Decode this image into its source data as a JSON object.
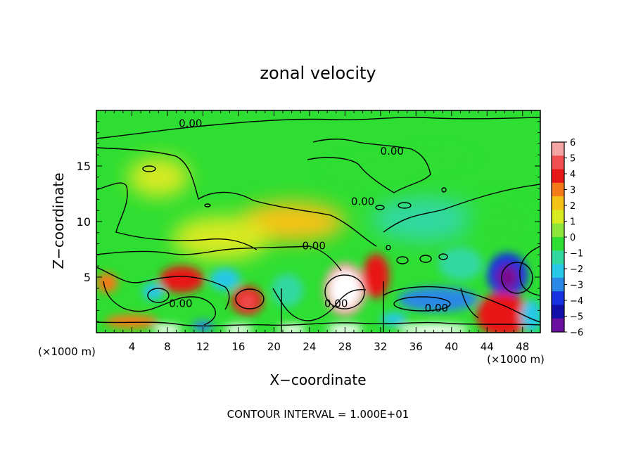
{
  "chart_data": {
    "type": "heatmap",
    "title": "zonal velocity",
    "xlabel": "X−coordinate",
    "ylabel": "Z−coordinate",
    "x_unit_left": "(×1000 m)",
    "x_unit_right": "(×1000 m)",
    "footer": "CONTOUR INTERVAL = 1.000E+01",
    "xlim": [
      0,
      50
    ],
    "ylim": [
      0,
      20
    ],
    "x_ticks": [
      4,
      8,
      12,
      16,
      20,
      24,
      28,
      32,
      36,
      40,
      44,
      48
    ],
    "y_ticks": [
      5,
      10,
      15
    ],
    "colorbar": {
      "ticks": [
        6,
        5,
        4,
        3,
        2,
        1,
        0,
        -1,
        -2,
        -3,
        -4,
        -5,
        -6
      ],
      "labels": [
        "6",
        "5",
        "4",
        "3",
        "2",
        "1",
        "0",
        "−1",
        "−2",
        "−3",
        "−4",
        "−5",
        "−6"
      ],
      "colors": [
        "#f4a3a3",
        "#f05050",
        "#e81818",
        "#f57a18",
        "#f5c218",
        "#d8ea20",
        "#8ee63a",
        "#2ede32",
        "#32d8a0",
        "#28c8e8",
        "#2a88e6",
        "#1432e0",
        "#1010a8",
        "#6a10a0"
      ]
    },
    "contour_label": "0.00",
    "contour_labels": [
      {
        "x": 10.6,
        "y": 18.5
      },
      {
        "x": 33.3,
        "y": 16.0
      },
      {
        "x": 30.0,
        "y": 11.5
      },
      {
        "x": 24.5,
        "y": 7.5
      },
      {
        "x": 9.5,
        "y": 2.3
      },
      {
        "x": 27.0,
        "y": 2.3
      },
      {
        "x": 38.3,
        "y": 1.9
      }
    ],
    "field_features": [
      {
        "x": 28.0,
        "y": 3.9,
        "r": [
          2.4,
          2.4
        ],
        "value": 6
      },
      {
        "x": 28.0,
        "y": 3.9,
        "r": [
          1.7,
          1.7
        ],
        "value": 7
      },
      {
        "x": 31.5,
        "y": 5.1,
        "r": [
          1.5,
          2.0
        ],
        "value": 4
      },
      {
        "x": 46.3,
        "y": 5.2,
        "r": [
          2.3,
          2.0
        ],
        "value": -5
      },
      {
        "x": 46.3,
        "y": 5.0,
        "r": [
          1.2,
          1.1
        ],
        "value": -7
      },
      {
        "x": 17.0,
        "y": 2.9,
        "r": [
          1.8,
          1.3
        ],
        "value": 4
      },
      {
        "x": 17.0,
        "y": 2.8,
        "r": [
          0.9,
          0.7
        ],
        "value": 5
      },
      {
        "x": 45.8,
        "y": 1.6,
        "r": [
          3.0,
          2.0
        ],
        "value": 4
      },
      {
        "x": 38.5,
        "y": 3.0,
        "r": [
          4.5,
          1.1
        ],
        "value": -4
      },
      {
        "x": 6.4,
        "y": 3.7,
        "r": [
          1.2,
          0.8
        ],
        "value": -3
      },
      {
        "x": 1.2,
        "y": 4.5,
        "r": [
          1.2,
          0.9
        ],
        "value": 3
      },
      {
        "x": 9.6,
        "y": 4.8,
        "r": [
          2.5,
          1.2
        ],
        "value": 4
      },
      {
        "x": 14.5,
        "y": 4.8,
        "r": [
          1.7,
          1.0
        ],
        "value": -3
      },
      {
        "x": 21.5,
        "y": 3.8,
        "r": [
          1.8,
          1.5
        ],
        "value": -2
      },
      {
        "x": 41.0,
        "y": 6.2,
        "r": [
          2.5,
          1.5
        ],
        "value": -2
      },
      {
        "x": 37.0,
        "y": 10.2,
        "r": [
          6.0,
          2.0
        ],
        "value": -2
      },
      {
        "x": 45.0,
        "y": 9.8,
        "r": [
          4.0,
          1.8
        ],
        "value": -1
      },
      {
        "x": 22.0,
        "y": 10.0,
        "r": [
          6.0,
          1.8
        ],
        "value": 2
      },
      {
        "x": 14.0,
        "y": 8.5,
        "r": [
          5.5,
          2.0
        ],
        "value": 1
      },
      {
        "x": 31.0,
        "y": 14.5,
        "r": [
          6.0,
          1.5
        ],
        "value": -1
      },
      {
        "x": 38.0,
        "y": 15.8,
        "r": [
          5.0,
          1.0
        ],
        "value": -1
      },
      {
        "x": 7.0,
        "y": 14.0,
        "r": [
          3.5,
          1.8
        ],
        "value": 1
      },
      {
        "x": 4.0,
        "y": 1.0,
        "r": [
          3.0,
          0.6
        ],
        "value": 3
      },
      {
        "x": 8.0,
        "y": 0.3,
        "r": [
          1.6,
          0.45
        ],
        "value": 7
      },
      {
        "x": 16.0,
        "y": 0.3,
        "r": [
          1.6,
          0.45
        ],
        "value": 7
      },
      {
        "x": 22.0,
        "y": 0.3,
        "r": [
          1.6,
          0.45
        ],
        "value": 7
      },
      {
        "x": 28.0,
        "y": 0.3,
        "r": [
          2.0,
          0.5
        ],
        "value": 7
      },
      {
        "x": 38.0,
        "y": 0.3,
        "r": [
          4.0,
          0.5
        ],
        "value": 7
      },
      {
        "x": 12.0,
        "y": 0.6,
        "r": [
          1.2,
          0.5
        ],
        "value": -4
      },
      {
        "x": 33.5,
        "y": 1.2,
        "r": [
          1.5,
          0.6
        ],
        "value": -3
      },
      {
        "x": 49.0,
        "y": 1.5,
        "r": [
          1.2,
          1.5
        ],
        "value": -3
      }
    ]
  }
}
